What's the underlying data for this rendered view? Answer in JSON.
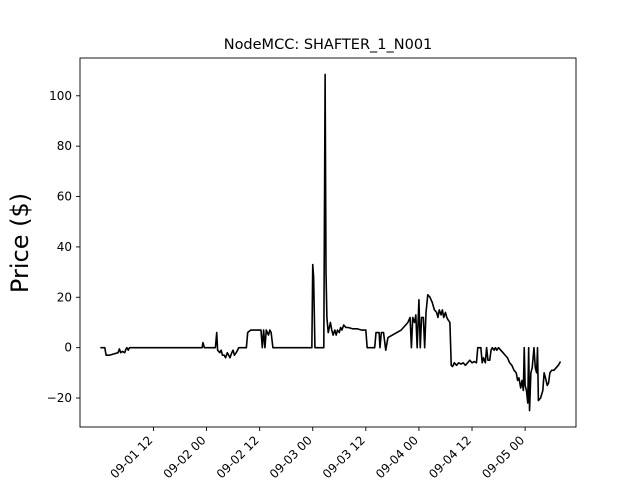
{
  "chart_data": {
    "type": "line",
    "title": "NodeMCC: SHAFTER_1_N001",
    "xlabel": "",
    "ylabel": "Price ($)",
    "x_axis": {
      "ticks": [
        "09-01 12",
        "09-02 00",
        "09-02 12",
        "09-03 00",
        "09-03 12",
        "09-04 00",
        "09-04 12",
        "09-05 00"
      ],
      "tick_hours": [
        12,
        24,
        36,
        48,
        60,
        72,
        84,
        96
      ],
      "range_hours": [
        -4.6,
        107.5
      ]
    },
    "y_axis": {
      "ticks": [
        -20,
        0,
        20,
        40,
        60,
        80,
        100
      ],
      "ylim": [
        -31.5,
        115
      ]
    },
    "grid": false,
    "series": [
      {
        "color": "#000000",
        "points": [
          [
            0,
            0
          ],
          [
            1,
            0
          ],
          [
            1.3,
            -3
          ],
          [
            2,
            -3
          ],
          [
            3,
            -2.5
          ],
          [
            4,
            -2
          ],
          [
            4.3,
            -0.5
          ],
          [
            4.6,
            -2
          ],
          [
            5,
            -1.5
          ],
          [
            5.5,
            -2
          ],
          [
            5.8,
            -0.5
          ],
          [
            6,
            0
          ],
          [
            6.3,
            -1
          ],
          [
            6.6,
            0
          ],
          [
            23,
            0
          ],
          [
            23.2,
            2
          ],
          [
            23.5,
            0
          ],
          [
            26,
            0
          ],
          [
            26.3,
            6
          ],
          [
            26.5,
            -1
          ],
          [
            27,
            -2
          ],
          [
            27.3,
            -1
          ],
          [
            27.6,
            -3
          ],
          [
            28,
            -3
          ],
          [
            28.3,
            -4
          ],
          [
            28.7,
            -2
          ],
          [
            29,
            -3
          ],
          [
            29.3,
            -4
          ],
          [
            29.7,
            -2
          ],
          [
            30,
            -1
          ],
          [
            30.3,
            -3
          ],
          [
            30.7,
            -2
          ],
          [
            31,
            -1
          ],
          [
            31.3,
            0
          ],
          [
            33,
            0
          ],
          [
            33.3,
            6
          ],
          [
            34,
            7
          ],
          [
            36,
            7
          ],
          [
            36.3,
            7
          ],
          [
            36.6,
            0
          ],
          [
            36.9,
            7
          ],
          [
            37.2,
            0
          ],
          [
            37.5,
            7
          ],
          [
            38,
            5
          ],
          [
            38.3,
            7
          ],
          [
            38.6,
            6
          ],
          [
            39,
            0
          ],
          [
            47.8,
            0
          ],
          [
            48,
            33
          ],
          [
            48.2,
            28
          ],
          [
            48.5,
            0
          ],
          [
            50.5,
            0
          ],
          [
            50.8,
            108.5
          ],
          [
            51,
            30
          ],
          [
            51.2,
            12
          ],
          [
            51.5,
            6
          ],
          [
            52,
            10
          ],
          [
            52.3,
            7
          ],
          [
            52.6,
            5
          ],
          [
            53,
            7
          ],
          [
            53.3,
            5
          ],
          [
            53.6,
            7
          ],
          [
            54,
            6
          ],
          [
            54.3,
            8
          ],
          [
            54.6,
            7
          ],
          [
            55,
            9
          ],
          [
            55.5,
            8
          ],
          [
            56,
            8
          ],
          [
            57,
            7.5
          ],
          [
            58,
            7.5
          ],
          [
            59,
            7
          ],
          [
            60,
            7
          ],
          [
            60.3,
            0
          ],
          [
            62,
            0
          ],
          [
            62.3,
            6
          ],
          [
            62.7,
            6
          ],
          [
            63,
            6
          ],
          [
            63.2,
            0
          ],
          [
            63.5,
            6
          ],
          [
            64,
            6
          ],
          [
            64.5,
            -1
          ],
          [
            65,
            4
          ],
          [
            66,
            5
          ],
          [
            67,
            6
          ],
          [
            68,
            7
          ],
          [
            68.5,
            8
          ],
          [
            69,
            9
          ],
          [
            69.5,
            10
          ],
          [
            70,
            12
          ],
          [
            70.3,
            0
          ],
          [
            70.6,
            12
          ],
          [
            71,
            10
          ],
          [
            71.3,
            13
          ],
          [
            71.6,
            0
          ],
          [
            72,
            19
          ],
          [
            72.3,
            0
          ],
          [
            72.6,
            12
          ],
          [
            73,
            12
          ],
          [
            73.3,
            0
          ],
          [
            73.6,
            14
          ],
          [
            74,
            21
          ],
          [
            74.5,
            20
          ],
          [
            75,
            18
          ],
          [
            75.5,
            15
          ],
          [
            76,
            14
          ],
          [
            76.3,
            12
          ],
          [
            76.6,
            15
          ],
          [
            77,
            13
          ],
          [
            77.3,
            15
          ],
          [
            77.6,
            12
          ],
          [
            78,
            14
          ],
          [
            78.3,
            12
          ],
          [
            78.6,
            11
          ],
          [
            79,
            10
          ],
          [
            79.3,
            -7
          ],
          [
            79.6,
            -7.5
          ],
          [
            80,
            -6
          ],
          [
            80.5,
            -7
          ],
          [
            81,
            -6
          ],
          [
            81.5,
            -6.5
          ],
          [
            82,
            -6
          ],
          [
            82.5,
            -7
          ],
          [
            83,
            -6
          ],
          [
            83.5,
            -5
          ],
          [
            84,
            -6
          ],
          [
            84.5,
            -5.5
          ],
          [
            85,
            -6
          ],
          [
            85.3,
            0
          ],
          [
            86,
            0
          ],
          [
            86.3,
            -6
          ],
          [
            86.6,
            -4
          ],
          [
            87,
            -6
          ],
          [
            87.3,
            0
          ],
          [
            87.6,
            -5
          ],
          [
            88,
            -5
          ],
          [
            88.3,
            -1
          ],
          [
            88.6,
            0
          ],
          [
            89,
            -1
          ],
          [
            89.3,
            0
          ],
          [
            89.6,
            -1
          ],
          [
            90,
            0
          ],
          [
            90.5,
            -1
          ],
          [
            91,
            -2
          ],
          [
            91.5,
            -3
          ],
          [
            92,
            -4
          ],
          [
            92.5,
            -6
          ],
          [
            93,
            -7
          ],
          [
            93.5,
            -9
          ],
          [
            94,
            -10
          ],
          [
            94.3,
            -13
          ],
          [
            94.6,
            -12
          ],
          [
            95,
            -16
          ],
          [
            95.3,
            -13
          ],
          [
            95.6,
            -17
          ],
          [
            95.8,
            0
          ],
          [
            96,
            -15
          ],
          [
            96.3,
            -17
          ],
          [
            96.6,
            -22
          ],
          [
            96.8,
            0
          ],
          [
            97,
            -25
          ],
          [
            97.3,
            -10
          ],
          [
            97.6,
            -8
          ],
          [
            98,
            0
          ],
          [
            98.3,
            -8
          ],
          [
            98.6,
            -10
          ],
          [
            98.8,
            0
          ],
          [
            99,
            -21
          ],
          [
            99.5,
            -20
          ],
          [
            100,
            -17
          ],
          [
            100.3,
            -10
          ],
          [
            100.6,
            -12
          ],
          [
            101,
            -15
          ],
          [
            101.3,
            -14
          ],
          [
            101.6,
            -10
          ],
          [
            102,
            -9
          ],
          [
            102.5,
            -9
          ],
          [
            103,
            -8
          ],
          [
            103.5,
            -7
          ],
          [
            104,
            -5.5
          ]
        ]
      }
    ]
  }
}
